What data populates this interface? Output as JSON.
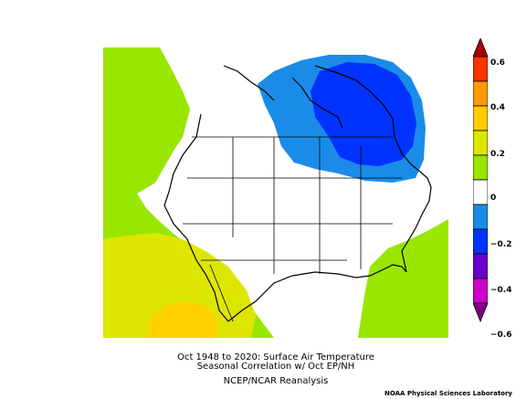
{
  "caption": {
    "line1": "Oct 1948 to 2020: Surface Air Temperature",
    "line2": "Seasonal Correlation w/ Oct EP/NH",
    "line3": "NCEP/NCAR Reanalysis"
  },
  "credit": "NOAA Physical Sciences Laboratory",
  "colorbar": {
    "labels": [
      "0.6",
      "0.4",
      "0.2",
      "0",
      "−0.2",
      "−0.4",
      "−0.6"
    ],
    "colors": {
      "dark_red": "#a80000",
      "red": "#ff3300",
      "orange": "#ff9900",
      "yellow": "#ffcc00",
      "yellow_green": "#dde600",
      "green": "#99e600",
      "white": "#ffffff",
      "light_blue": "#1a8ce8",
      "blue": "#0033ff",
      "purple": "#6600cc",
      "magenta": "#cc00cc",
      "dark_purple": "#80007f"
    }
  },
  "map": {
    "region": "North America",
    "field_colors": {
      "positive_weak": "#99e600",
      "positive_mid": "#dde600",
      "positive_strong": "#ffd200",
      "negative_weak": "#1a8ce8",
      "negative_strong": "#0033ff"
    }
  }
}
